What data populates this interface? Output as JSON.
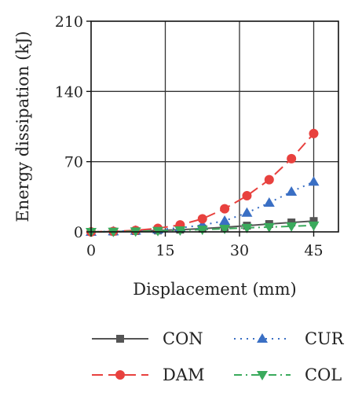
{
  "chart_data": {
    "type": "line",
    "xlabel": "Displacement (mm)",
    "ylabel": "Energy dissipation (kJ)",
    "xlim": [
      0,
      50
    ],
    "ylim": [
      0,
      210
    ],
    "xticks": [
      0,
      15,
      30,
      45
    ],
    "yticks": [
      0,
      70,
      140,
      210
    ],
    "grid": true,
    "legend_position": "bottom",
    "series": [
      {
        "name": "CON",
        "color": "#555555",
        "marker": "square",
        "line": "solid",
        "x": [
          0,
          4.5,
          9,
          13.5,
          18,
          22.5,
          27,
          31.5,
          36,
          40.5,
          45
        ],
        "y": [
          0,
          0.3,
          0.8,
          1.4,
          2.2,
          3.2,
          4.6,
          6.2,
          7.8,
          9.4,
          10.8
        ]
      },
      {
        "name": "CUR",
        "color": "#3a6fc4",
        "marker": "triangle-up",
        "line": "dotted",
        "x": [
          0,
          4.5,
          9,
          13.5,
          18,
          22.5,
          27,
          31.5,
          36,
          40.5,
          45
        ],
        "y": [
          0,
          0.5,
          1.2,
          2.3,
          4,
          6.8,
          11,
          19,
          29,
          40,
          50
        ]
      },
      {
        "name": "DAM",
        "color": "#e8413e",
        "marker": "circle",
        "line": "dashed",
        "x": [
          0,
          4.5,
          9,
          13.5,
          18,
          22.5,
          27,
          31.5,
          36,
          40.5,
          45
        ],
        "y": [
          0,
          0.5,
          1.5,
          3.5,
          7,
          13,
          23,
          36,
          52,
          73,
          98
        ]
      },
      {
        "name": "COL",
        "color": "#3aaa5c",
        "marker": "triangle-down",
        "line": "dashdot",
        "x": [
          0,
          4.5,
          9,
          13.5,
          18,
          22.5,
          27,
          31.5,
          36,
          40.5,
          45
        ],
        "y": [
          0,
          0.2,
          0.5,
          1,
          1.6,
          2.3,
          3.1,
          4,
          4.8,
          5.6,
          6.4
        ]
      }
    ],
    "legend_order": [
      "CON",
      "CUR",
      "DAM",
      "COL"
    ]
  }
}
